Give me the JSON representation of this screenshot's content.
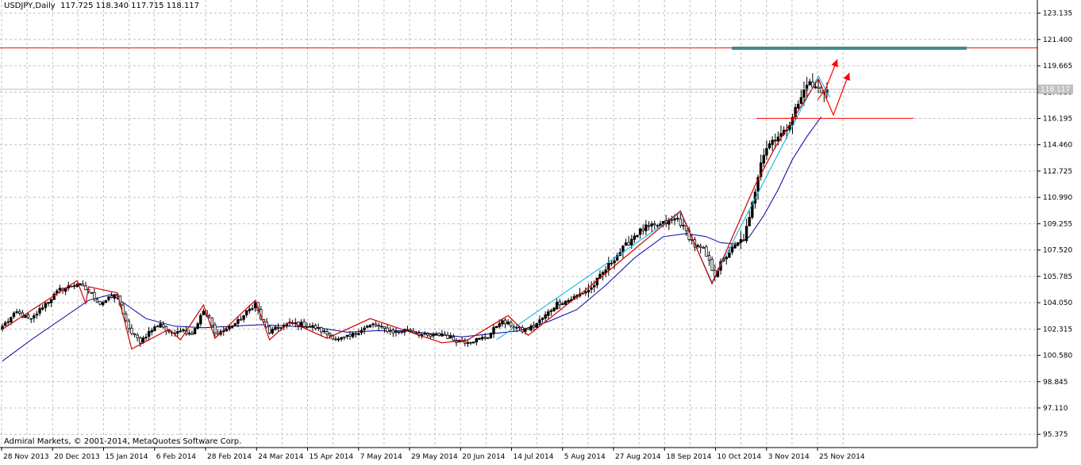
{
  "header": {
    "symbol_tf": "USDJPY,Daily",
    "ohlc": "117.725 118.340 117.715 118.117"
  },
  "footer": {
    "copyright": "Admiral Markets, © 2001-2014, MetaQuotes Software Corp."
  },
  "colors": {
    "bull_candle": "#000000",
    "bear_candle": "#ffffff",
    "candle_outline": "#000000",
    "grid": "#c0c0c0",
    "resistance_line": "#ff0000",
    "support_line": "#ff0000",
    "target_zone": "#3d8a8a",
    "ma_line": "#0000a0",
    "zigzag_red": "#cc0000",
    "zigzag_cyan": "#00b0e0",
    "arrow": "#ff0000"
  },
  "chart_data": {
    "type": "candlestick",
    "ylim": [
      94.5,
      124.0
    ],
    "y_ticks": [
      "123.135",
      "121.400",
      "119.665",
      "117.930",
      "116.195",
      "114.460",
      "112.725",
      "110.990",
      "109.255",
      "107.520",
      "105.785",
      "104.050",
      "102.315",
      "100.580",
      "98.845",
      "97.110",
      "95.375"
    ],
    "x_labels": [
      "28 Nov 2013",
      "20 Dec 2013",
      "15 Jan 2014",
      "6 Feb 2014",
      "28 Feb 2014",
      "24 Mar 2014",
      "15 Apr 2014",
      "7 May 2014",
      "29 May 2014",
      "20 Jun 2014",
      "14 Jul 2014",
      "5 Aug 2014",
      "27 Aug 2014",
      "18 Sep 2014",
      "10 Oct 2014",
      "3 Nov 2014",
      "25 Nov 2014"
    ],
    "current_price": "118.117",
    "current_price_value": 118.117,
    "resistance_level": 120.85,
    "support_level": 116.2,
    "target_zone_level": 120.85,
    "close_anchors": [
      [
        0,
        102.5
      ],
      [
        5,
        103.4
      ],
      [
        10,
        102.9
      ],
      [
        14,
        103.8
      ],
      [
        20,
        104.9
      ],
      [
        26,
        105.3
      ],
      [
        30,
        104.8
      ],
      [
        34,
        104.0
      ],
      [
        38,
        104.4
      ],
      [
        40,
        104.6
      ],
      [
        42,
        103.2
      ],
      [
        45,
        102.0
      ],
      [
        48,
        101.5
      ],
      [
        51,
        102.1
      ],
      [
        55,
        102.7
      ],
      [
        58,
        102.0
      ],
      [
        62,
        102.3
      ],
      [
        66,
        102.0
      ],
      [
        70,
        103.5
      ],
      [
        72,
        103.0
      ],
      [
        74,
        102.0
      ],
      [
        78,
        102.3
      ],
      [
        82,
        102.8
      ],
      [
        86,
        103.6
      ],
      [
        88,
        104.0
      ],
      [
        90,
        103.0
      ],
      [
        93,
        102.1
      ],
      [
        97,
        102.5
      ],
      [
        101,
        102.7
      ],
      [
        105,
        102.6
      ],
      [
        109,
        102.4
      ],
      [
        113,
        102.0
      ],
      [
        117,
        101.6
      ],
      [
        121,
        101.8
      ],
      [
        125,
        102.3
      ],
      [
        129,
        102.6
      ],
      [
        133,
        102.3
      ],
      [
        137,
        102.1
      ],
      [
        141,
        102.3
      ],
      [
        145,
        102.0
      ],
      [
        149,
        101.8
      ],
      [
        153,
        102.0
      ],
      [
        157,
        101.6
      ],
      [
        161,
        101.5
      ],
      [
        165,
        101.6
      ],
      [
        169,
        101.8
      ],
      [
        173,
        102.8
      ],
      [
        177,
        102.6
      ],
      [
        181,
        102.2
      ],
      [
        185,
        102.5
      ],
      [
        189,
        103.2
      ],
      [
        193,
        104.0
      ],
      [
        197,
        104.2
      ],
      [
        201,
        104.6
      ],
      [
        205,
        105.0
      ],
      [
        209,
        106.0
      ],
      [
        213,
        107.0
      ],
      [
        217,
        107.8
      ],
      [
        220,
        108.5
      ],
      [
        224,
        109.0
      ],
      [
        228,
        109.1
      ],
      [
        232,
        109.4
      ],
      [
        235,
        109.6
      ],
      [
        238,
        108.7
      ],
      [
        241,
        107.8
      ],
      [
        244,
        107.5
      ],
      [
        247,
        106.3
      ],
      [
        248,
        105.9
      ],
      [
        250,
        106.6
      ],
      [
        253,
        107.4
      ],
      [
        256,
        107.9
      ],
      [
        258,
        108.3
      ],
      [
        260,
        109.5
      ],
      [
        262,
        111.5
      ],
      [
        264,
        113.5
      ],
      [
        266,
        114.3
      ],
      [
        269,
        115.0
      ],
      [
        272,
        115.2
      ],
      [
        275,
        116.4
      ],
      [
        278,
        117.5
      ],
      [
        280,
        118.6
      ],
      [
        282,
        118.3
      ],
      [
        285,
        118.0
      ],
      [
        287,
        118.117
      ]
    ],
    "moving_average": [
      [
        0,
        100.2
      ],
      [
        10,
        101.6
      ],
      [
        20,
        102.9
      ],
      [
        30,
        104.2
      ],
      [
        38,
        104.6
      ],
      [
        44,
        103.8
      ],
      [
        50,
        103.0
      ],
      [
        60,
        102.5
      ],
      [
        70,
        102.4
      ],
      [
        80,
        102.5
      ],
      [
        90,
        102.6
      ],
      [
        100,
        102.5
      ],
      [
        110,
        102.4
      ],
      [
        120,
        102.1
      ],
      [
        130,
        102.2
      ],
      [
        140,
        102.2
      ],
      [
        150,
        102.0
      ],
      [
        160,
        101.8
      ],
      [
        170,
        102.0
      ],
      [
        180,
        102.2
      ],
      [
        190,
        102.8
      ],
      [
        200,
        103.6
      ],
      [
        210,
        105.2
      ],
      [
        220,
        107.0
      ],
      [
        230,
        108.4
      ],
      [
        238,
        108.6
      ],
      [
        245,
        108.4
      ],
      [
        250,
        108.0
      ],
      [
        256,
        107.9
      ],
      [
        260,
        108.4
      ],
      [
        265,
        109.8
      ],
      [
        270,
        111.5
      ],
      [
        275,
        113.5
      ],
      [
        280,
        115.0
      ],
      [
        285,
        116.3
      ]
    ],
    "zigzag_red": [
      [
        0,
        102.3
      ],
      [
        26,
        105.5
      ],
      [
        29,
        104.0
      ],
      [
        30,
        105.1
      ],
      [
        40,
        104.7
      ],
      [
        45,
        101.0
      ],
      [
        58,
        102.3
      ],
      [
        62,
        101.6
      ],
      [
        70,
        103.9
      ],
      [
        74,
        101.7
      ],
      [
        88,
        104.2
      ],
      [
        93,
        101.6
      ],
      [
        100,
        102.8
      ],
      [
        113,
        101.7
      ],
      [
        128,
        103.0
      ],
      [
        153,
        101.4
      ],
      [
        162,
        101.6
      ],
      [
        176,
        103.2
      ],
      [
        183,
        101.9
      ],
      [
        205,
        105.2
      ],
      [
        236,
        110.1
      ],
      [
        247,
        105.3
      ],
      [
        262,
        111.8
      ],
      [
        269,
        114.3
      ],
      [
        284,
        118.8
      ],
      [
        287,
        117.5
      ]
    ],
    "zigzag_cyan": [
      [
        172,
        101.6
      ],
      [
        236,
        110.0
      ],
      [
        247,
        105.4
      ],
      [
        284,
        119.0
      ],
      [
        288,
        117.6
      ]
    ]
  }
}
